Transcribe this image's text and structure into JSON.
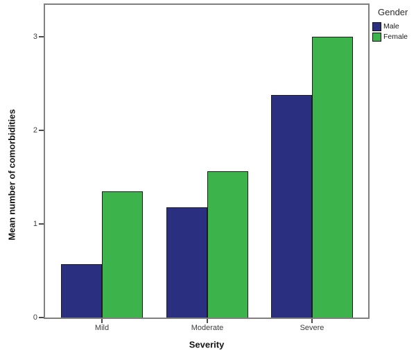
{
  "chart_data": {
    "type": "bar",
    "title": "",
    "xlabel": "Severity",
    "ylabel": "Mean number of comorbidities",
    "legend_title": "Gender",
    "legend_position": "top-right-outside",
    "grid": false,
    "categories": [
      "Mild",
      "Moderate",
      "Severe"
    ],
    "series": [
      {
        "name": "Male",
        "color": "#2b2f80",
        "values": [
          0.57,
          1.18,
          2.38
        ]
      },
      {
        "name": "Female",
        "color": "#3cb44b",
        "values": [
          1.35,
          1.56,
          3.0
        ]
      }
    ],
    "ylim": [
      0,
      3.35
    ],
    "yticks": [
      0,
      1,
      2,
      3
    ],
    "colors": {
      "bar_border": "#1c1c1c",
      "frame": "#7f7f7f",
      "tick": "#4a4a4a",
      "tick_label": "#3d3d3d",
      "background": "#ffffff"
    }
  }
}
